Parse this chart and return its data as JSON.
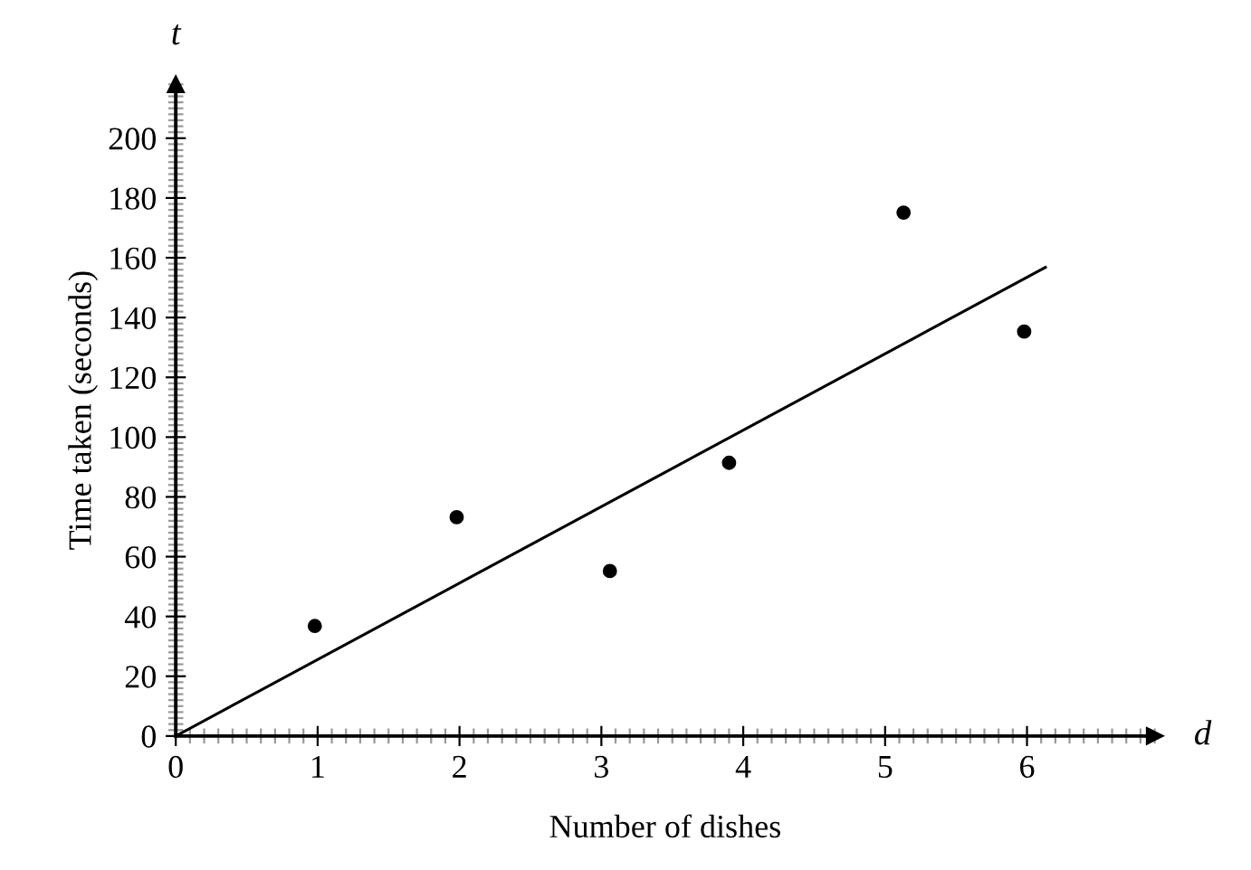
{
  "chart_data": {
    "type": "scatter",
    "xlabel": "Number of dishes",
    "ylabel": "Time taken (seconds)",
    "annotations": [
      "t",
      "d"
    ],
    "series": [
      {
        "color": "#000000",
        "marker": "circle",
        "x": [
          0.98,
          1.98,
          3.06,
          3.9,
          5.13,
          5.98
        ],
        "values": [
          36.8,
          73.2,
          55.2,
          91.4,
          175.1,
          135.3
        ]
      },
      {
        "type": "line",
        "color": "#000000",
        "line_style": "solid",
        "x": [
          0,
          6.13
        ],
        "values": [
          0,
          156.8
        ]
      }
    ],
    "xlim": [
      0,
      6.9
    ],
    "ylim": [
      0,
      218
    ],
    "xticks": [
      0,
      1,
      2,
      3,
      4,
      5,
      6
    ],
    "yticks": [
      0,
      20,
      40,
      60,
      80,
      100,
      120,
      140,
      160,
      180,
      200
    ],
    "grid": false,
    "legend": false
  }
}
